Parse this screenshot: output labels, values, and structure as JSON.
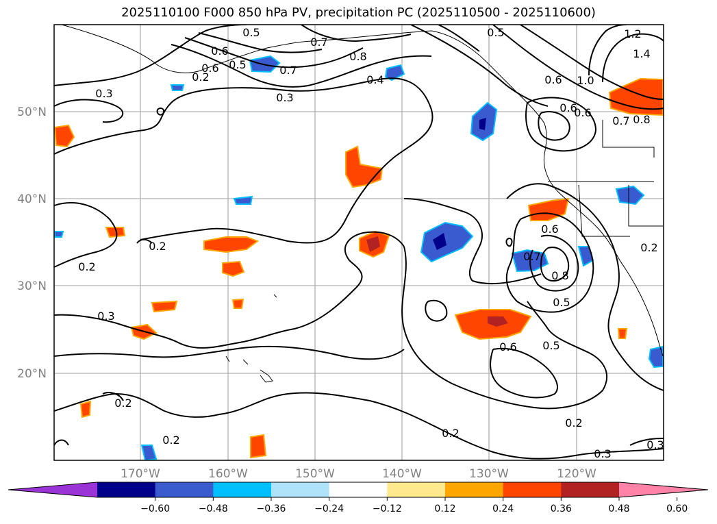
{
  "title": "2025110100 F000 850 hPa PV, precipitation PC (2025110500 - 2025110600)",
  "lat_labels": [
    "50°N",
    "40°N",
    "30°N",
    "20°N"
  ],
  "lon_labels": [
    "170°W",
    "160°W",
    "150°W",
    "140°W",
    "130°W",
    "120°W"
  ],
  "colorbar": {
    "ticks": [
      "−0.60",
      "−0.48",
      "−0.36",
      "−0.24",
      "−0.12",
      "0.12",
      "0.24",
      "0.36",
      "0.48",
      "0.60"
    ],
    "colors": [
      "#9b34d6",
      "#00008b",
      "#3a5bd0",
      "#00bfff",
      "#aee2f8",
      "#ffffff",
      "#ffe98c",
      "#ffa500",
      "#ff4500",
      "#b22222",
      "#ff82a8"
    ]
  },
  "contour_labels": [
    "0.5",
    "0.6",
    "0.6",
    "0.5",
    "0.7",
    "0.8",
    "0.7",
    "0.2",
    "0.3",
    "0.3",
    "0.4",
    "0.5",
    "1.2",
    "1.4",
    "1.0",
    "0.6",
    "0.6",
    "0.6",
    "0.7",
    "0.8",
    "0.2",
    "0.2",
    "0.3",
    "0.6",
    "0.8",
    "0.7",
    "0.5",
    "0.2",
    "0.6",
    "0.5",
    "0.2",
    "0.2",
    "0.2",
    "0.2",
    "0.3",
    "0.3"
  ]
}
